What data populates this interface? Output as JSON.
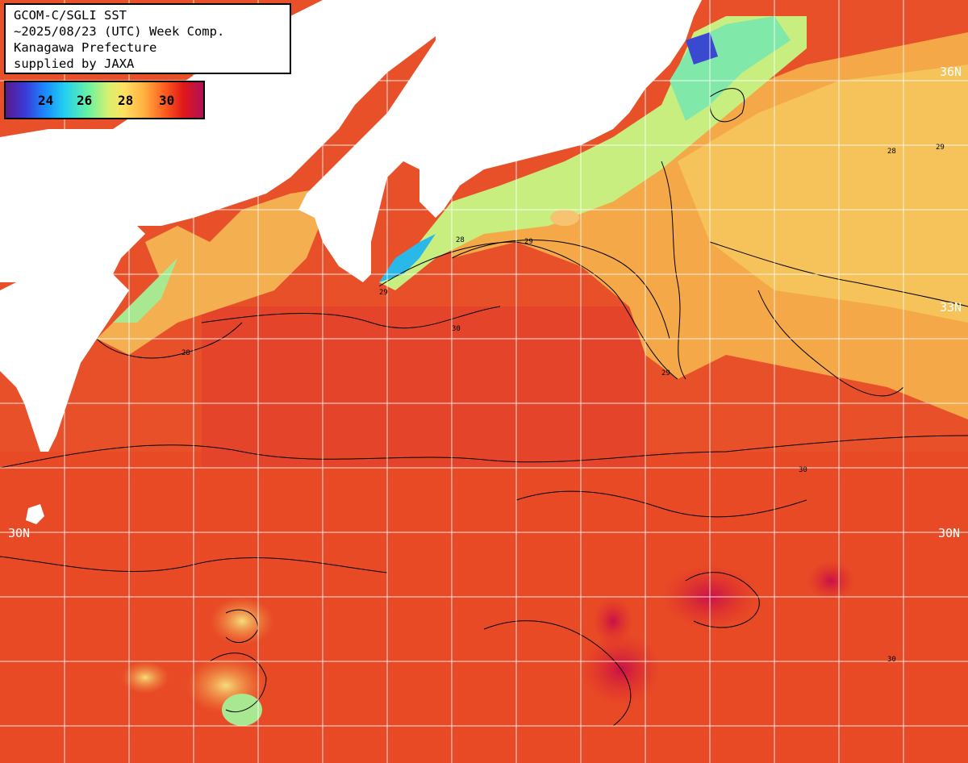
{
  "title": {
    "lines": [
      "GCOM-C/SGLI SST",
      "~2025/08/23 (UTC) Week Comp.",
      "Kanagawa Prefecture",
      "supplied by JAXA"
    ]
  },
  "legend": {
    "ticks": [
      "24",
      "26",
      "28",
      "30"
    ],
    "colors": [
      "#5a1a8c",
      "#3a3ad8",
      "#1a8aff",
      "#22d0f0",
      "#6af2a0",
      "#d8f070",
      "#ffe060",
      "#ffb040",
      "#ff6020",
      "#e01818",
      "#b0105a"
    ]
  },
  "grid": {
    "lat_labels": [
      "36N",
      "33N",
      "30N",
      "30N"
    ]
  },
  "contour_labels": [
    "28",
    "29",
    "30",
    "29",
    "28",
    "30",
    "29",
    "28",
    "29",
    "30"
  ],
  "colors": {
    "land": "#ffffff",
    "ocean_warm": "#e8502a",
    "ocean_cool": "#f0d070",
    "ocean_cold": "#80e8a0",
    "grid": "#ffffff",
    "contour": "#000000"
  }
}
